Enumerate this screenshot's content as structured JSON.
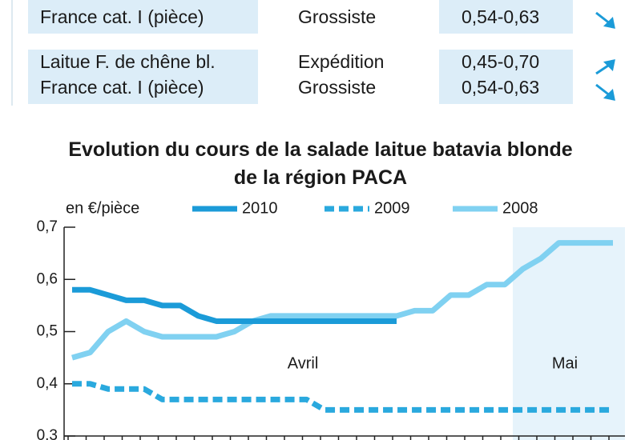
{
  "table": {
    "rows": [
      [
        "France cat. I (pièce)",
        "Grossiste",
        "0,54-0,63"
      ],
      [
        "Laitue F. de chêne bl.",
        "Expédition",
        "0,45-0,70"
      ],
      [
        "France cat. I (pièce)",
        "Grossiste",
        "0,54-0,63"
      ]
    ]
  },
  "chart_data": {
    "type": "line",
    "title": "Evolution du cours de la salade laitue batavia blonde de la région PACA",
    "ylabel": "en €/pièce",
    "categories": [
      null,
      null,
      null,
      null,
      null,
      null,
      null,
      null,
      null,
      null,
      null,
      null,
      null,
      null,
      null,
      null,
      null,
      null,
      null,
      null,
      null,
      null,
      null,
      null,
      null,
      null,
      null,
      null,
      null,
      null,
      null
    ],
    "series": [
      {
        "name": "2010",
        "color": "#1b9bd8",
        "dashed": false,
        "values": [
          0.58,
          0.58,
          0.57,
          0.56,
          0.56,
          0.55,
          0.55,
          0.53,
          0.52,
          0.52,
          0.52,
          0.52,
          0.52,
          0.52,
          0.52,
          0.52,
          0.52,
          0.52,
          0.52,
          null,
          null,
          null,
          null,
          null,
          null,
          null,
          null,
          null,
          null,
          null,
          null
        ]
      },
      {
        "name": "2009",
        "color": "#2aa9de",
        "dashed": true,
        "values": [
          0.4,
          0.4,
          0.39,
          0.39,
          0.39,
          0.37,
          0.37,
          0.37,
          0.37,
          0.37,
          0.37,
          0.37,
          0.37,
          0.37,
          0.35,
          0.35,
          0.35,
          0.35,
          0.35,
          0.35,
          0.35,
          0.35,
          0.35,
          0.35,
          0.35,
          0.35,
          0.35,
          0.35,
          0.35,
          0.35,
          0.35
        ]
      },
      {
        "name": "2008",
        "color": "#80d1f1",
        "dashed": false,
        "values": [
          0.45,
          0.46,
          0.5,
          0.52,
          0.5,
          0.49,
          0.49,
          0.49,
          0.49,
          0.5,
          0.52,
          0.53,
          0.53,
          0.53,
          0.53,
          0.53,
          0.53,
          0.53,
          0.53,
          0.54,
          0.54,
          0.57,
          0.57,
          0.59,
          0.59,
          0.62,
          0.64,
          0.67,
          0.67,
          0.67,
          0.67
        ]
      }
    ],
    "annotations": [
      "Avril",
      "Mai"
    ],
    "ylim": [
      0.3,
      0.7
    ],
    "yticks": [
      {
        "value": 0.3,
        "label": "0,3"
      },
      {
        "value": 0.4,
        "label": "0,4"
      },
      {
        "value": 0.5,
        "label": "0,5"
      },
      {
        "value": 0.6,
        "label": "0,6"
      },
      {
        "value": 0.7,
        "label": "0,7"
      }
    ]
  }
}
